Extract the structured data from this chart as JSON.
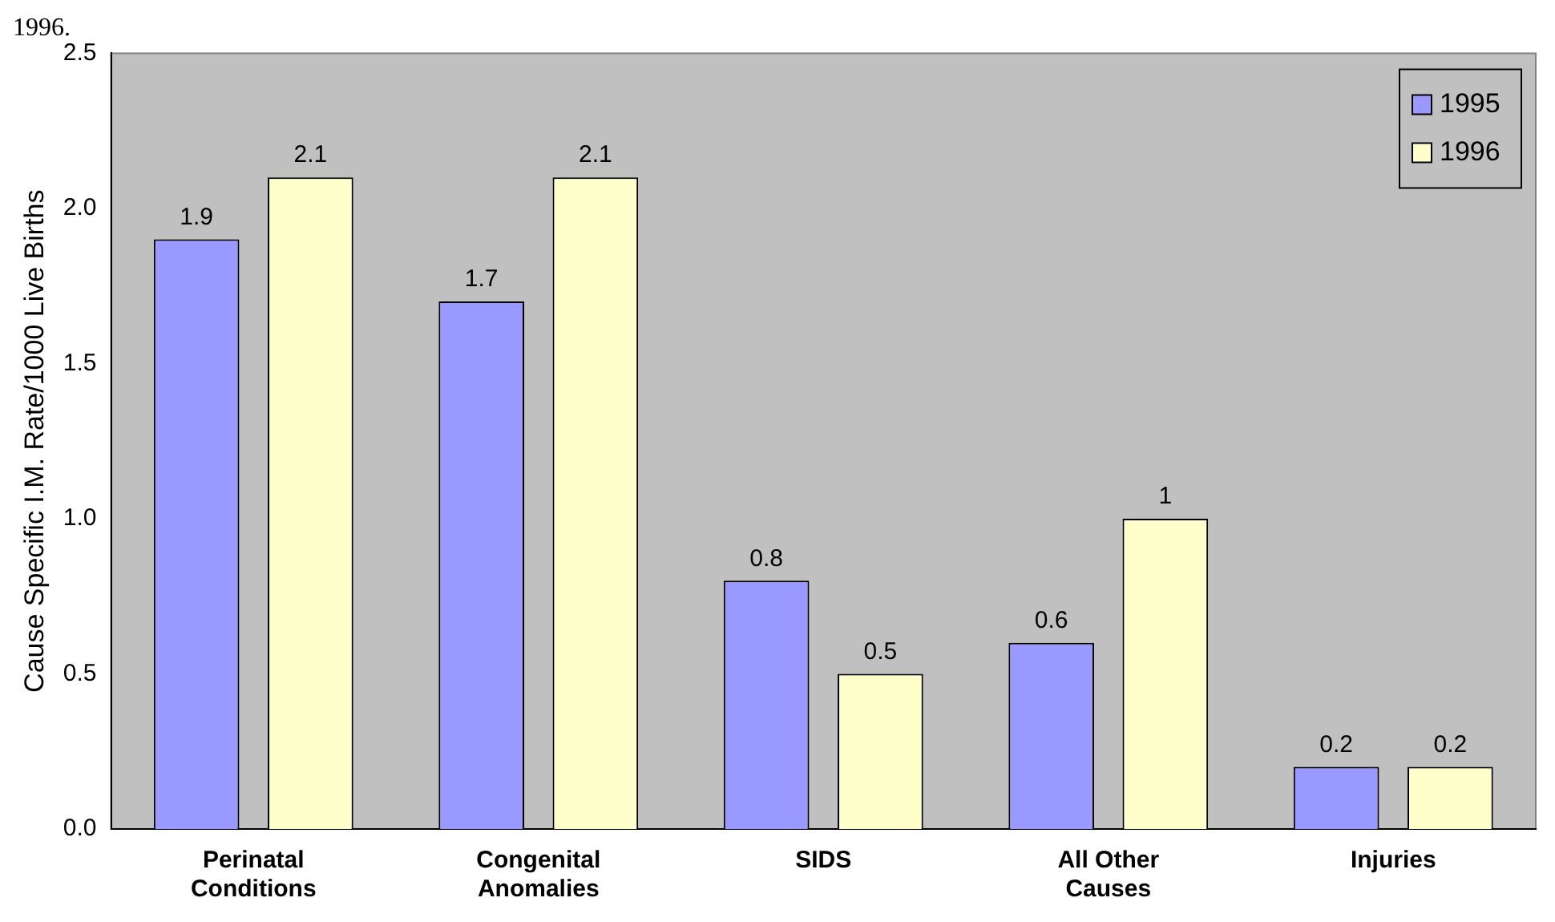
{
  "chart_data": {
    "type": "bar",
    "title": "1996.",
    "ylabel": "Cause Specific I.M. Rate/1000 Live Births",
    "categories": [
      "Perinatal Conditions",
      "Congenital Anomalies",
      "SIDS",
      "All Other Causes",
      "Injuries"
    ],
    "series": [
      {
        "name": "1995",
        "color": "#9999ff",
        "values": [
          1.9,
          1.7,
          0.8,
          0.6,
          0.2
        ]
      },
      {
        "name": "1996",
        "color": "#ffffcc",
        "values": [
          2.1,
          2.1,
          0.5,
          1,
          0.2
        ]
      }
    ],
    "ylim": [
      0,
      2.5
    ],
    "yticks": [
      {
        "value": 0,
        "label": "0.0"
      },
      {
        "value": 0.5,
        "label": "0.5"
      },
      {
        "value": 1,
        "label": "1.0"
      },
      {
        "value": 1.5,
        "label": "1.5"
      },
      {
        "value": 2,
        "label": "2.0"
      },
      {
        "value": 2.5,
        "label": "2.5"
      }
    ],
    "data_labels": true,
    "legend": "top right",
    "grid": false
  }
}
